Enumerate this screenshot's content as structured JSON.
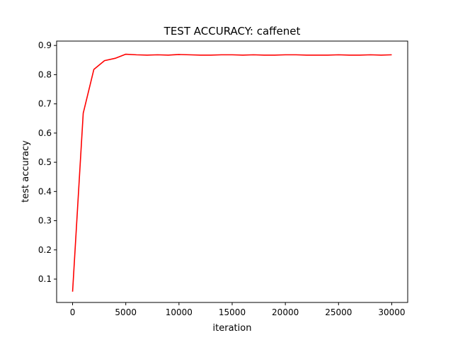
{
  "chart_data": {
    "type": "line",
    "title": "TEST ACCURACY: caffenet",
    "xlabel": "iteration",
    "ylabel": "test accuracy",
    "xlim": [
      -1500,
      31500
    ],
    "ylim": [
      0.02,
      0.915
    ],
    "xticks": [
      0,
      5000,
      10000,
      15000,
      20000,
      25000,
      30000
    ],
    "yticks": [
      0.1,
      0.2,
      0.3,
      0.4,
      0.5,
      0.6,
      0.7,
      0.8,
      0.9
    ],
    "grid": false,
    "legend": "none",
    "series": [
      {
        "color": "#ff0000",
        "x": [
          0,
          1000,
          2000,
          3000,
          4000,
          5000,
          6000,
          7000,
          8000,
          9000,
          10000,
          11000,
          12000,
          13000,
          14000,
          15000,
          16000,
          17000,
          18000,
          19000,
          20000,
          21000,
          22000,
          23000,
          24000,
          25000,
          26000,
          27000,
          28000,
          29000,
          30000
        ],
        "y": [
          0.057,
          0.668,
          0.818,
          0.848,
          0.856,
          0.87,
          0.868,
          0.867,
          0.868,
          0.867,
          0.869,
          0.868,
          0.867,
          0.867,
          0.868,
          0.868,
          0.867,
          0.868,
          0.867,
          0.867,
          0.868,
          0.868,
          0.867,
          0.867,
          0.867,
          0.868,
          0.867,
          0.867,
          0.868,
          0.867,
          0.868
        ]
      }
    ]
  }
}
